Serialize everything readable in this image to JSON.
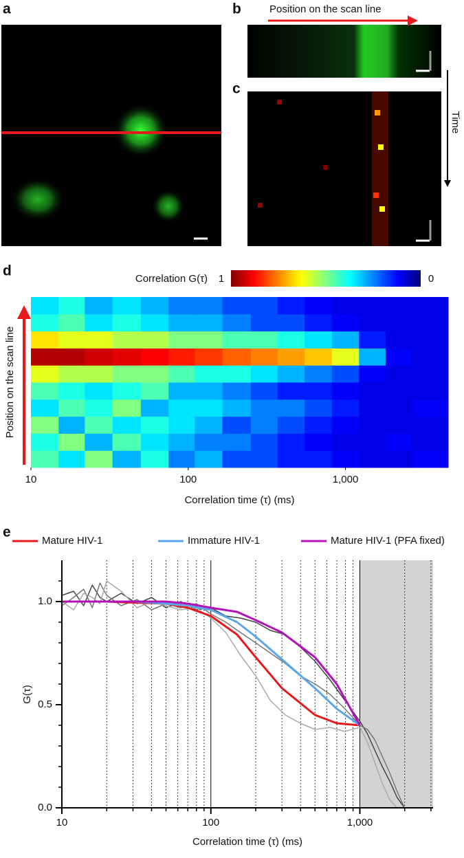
{
  "figure": {
    "panel_labels": [
      "a",
      "b",
      "c",
      "d",
      "e"
    ],
    "scan_line_label": "Position on the scan line",
    "time_label": "Time"
  },
  "chart_data": [
    {
      "type": "heatmap",
      "title": "Correlation G(τ)",
      "y_label": "Position on the scan line",
      "x_label": "Correlation time (τ) (ms)",
      "log_x": true,
      "xlim": [
        10,
        4500
      ],
      "xticks": [
        10,
        100,
        {
          "value": 1000,
          "label": "1,000"
        }
      ],
      "colormap": "jet-reversed",
      "clim": [
        0,
        1
      ],
      "xbins": [
        10,
        15,
        22,
        33,
        50,
        75,
        110,
        165,
        250,
        370,
        550,
        820,
        1220,
        1800,
        2700,
        4500
      ],
      "z": [
        [
          0.45,
          0.35,
          0.5,
          0.3,
          0.4,
          0.25,
          0.3,
          0.2,
          0.2,
          0.15,
          0.15,
          0.12,
          0.1,
          0.1,
          0.12
        ],
        [
          0.4,
          0.5,
          0.3,
          0.45,
          0.35,
          0.3,
          0.25,
          0.25,
          0.2,
          0.15,
          0.12,
          0.1,
          0.1,
          0.12,
          0.1
        ],
        [
          0.5,
          0.3,
          0.45,
          0.35,
          0.4,
          0.35,
          0.3,
          0.2,
          0.25,
          0.2,
          0.15,
          0.12,
          0.1,
          0.1,
          0.1
        ],
        [
          0.35,
          0.45,
          0.4,
          0.5,
          0.3,
          0.35,
          0.35,
          0.3,
          0.25,
          0.25,
          0.2,
          0.15,
          0.1,
          0.1,
          0.12
        ],
        [
          0.45,
          0.4,
          0.35,
          0.4,
          0.45,
          0.3,
          0.3,
          0.25,
          0.2,
          0.15,
          0.15,
          0.12,
          0.1,
          0.1,
          0.1
        ],
        [
          0.6,
          0.55,
          0.55,
          0.5,
          0.5,
          0.45,
          0.4,
          0.4,
          0.35,
          0.3,
          0.25,
          0.2,
          0.12,
          0.1,
          0.1
        ],
        [
          0.95,
          0.95,
          0.92,
          0.9,
          0.88,
          0.85,
          0.82,
          0.78,
          0.75,
          0.72,
          0.68,
          0.6,
          0.3,
          0.12,
          0.1
        ],
        [
          0.65,
          0.6,
          0.6,
          0.55,
          0.55,
          0.5,
          0.5,
          0.45,
          0.45,
          0.4,
          0.35,
          0.3,
          0.15,
          0.1,
          0.1
        ],
        [
          0.4,
          0.45,
          0.35,
          0.4,
          0.35,
          0.3,
          0.3,
          0.25,
          0.2,
          0.2,
          0.15,
          0.12,
          0.1,
          0.1,
          0.1
        ],
        [
          0.35,
          0.4,
          0.3,
          0.35,
          0.3,
          0.25,
          0.25,
          0.2,
          0.2,
          0.15,
          0.12,
          0.1,
          0.1,
          0.1,
          0.1
        ]
      ]
    },
    {
      "type": "line",
      "y_label": "G(τ)",
      "x_label": "Correlation time (τ) (ms)",
      "log_x": true,
      "xlim": [
        10,
        3100
      ],
      "ylim": [
        0,
        1.2
      ],
      "xticks": [
        10,
        100,
        {
          "value": 1000,
          "label": "1,000"
        }
      ],
      "yticks": [
        {
          "value": 0,
          "label": "0.0"
        },
        {
          "value": 0.5,
          "label": "0.5"
        },
        {
          "value": 1,
          "label": "1.0"
        }
      ],
      "yminor": [
        0.1,
        0.2,
        0.3,
        0.4,
        0.6,
        0.7,
        0.8,
        0.9,
        1.1
      ],
      "solid_vlines": [
        100,
        1000
      ],
      "dotted_vlines": [
        20,
        30,
        40,
        50,
        60,
        70,
        80,
        90,
        200,
        300,
        400,
        500,
        600,
        700,
        800,
        900,
        2000,
        3000
      ],
      "shaded_xrange": [
        1000,
        3100
      ],
      "series": [
        {
          "color": "#444",
          "x": [
            10,
            12,
            14,
            16,
            18,
            20,
            25,
            32,
            40,
            50,
            63,
            80,
            100,
            126,
            158,
            200,
            251,
            316,
            398,
            501,
            631,
            794,
            1000,
            1122,
            1259,
            1413,
            1585,
            1778,
            1995
          ],
          "values": [
            1.03,
            1.05,
            0.98,
            1.08,
            1.02,
            1.0,
            1.04,
            0.99,
            1.02,
            0.97,
            1.0,
            0.96,
            0.97,
            0.93,
            0.92,
            0.9,
            0.86,
            0.84,
            0.78,
            0.71,
            0.62,
            0.52,
            0.42,
            0.36,
            0.28,
            0.2,
            0.13,
            0.05,
            0.0
          ]
        },
        {
          "color": "#777",
          "x": [
            10,
            12,
            14,
            16,
            18,
            20,
            25,
            32,
            40,
            50,
            63,
            80,
            100,
            126,
            158,
            200,
            251,
            316,
            398,
            501,
            631,
            794,
            1000,
            1122,
            1259,
            1413,
            1585,
            1778,
            1995
          ],
          "values": [
            0.98,
            1.02,
            1.06,
            0.97,
            1.09,
            1.03,
            0.98,
            1.01,
            0.96,
            0.99,
            0.97,
            0.99,
            0.94,
            0.9,
            0.85,
            0.8,
            0.75,
            0.7,
            0.64,
            0.6,
            0.55,
            0.48,
            0.4,
            0.38,
            0.33,
            0.25,
            0.17,
            0.08,
            0.0
          ]
        },
        {
          "color": "#aaa",
          "x": [
            10,
            12,
            14,
            16,
            18,
            20,
            25,
            32,
            40,
            50,
            63,
            80,
            100,
            126,
            158,
            200,
            251,
            316,
            398,
            501,
            631,
            794,
            1000,
            1122,
            1259,
            1413,
            1585,
            1778,
            1995
          ],
          "values": [
            1.0,
            0.96,
            1.04,
            1.02,
            0.99,
            1.1,
            1.05,
            0.97,
            1.0,
            0.98,
            0.96,
            0.97,
            0.92,
            0.85,
            0.74,
            0.64,
            0.52,
            0.45,
            0.41,
            0.38,
            0.39,
            0.37,
            0.39,
            0.32,
            0.22,
            0.12,
            0.04,
            0.0,
            null
          ]
        },
        {
          "name": "Mature HIV-1",
          "color": "#e8191b",
          "x": [
            10,
            20,
            30,
            50,
            70,
            100,
            150,
            200,
            300,
            500,
            700,
            1000
          ],
          "values": [
            1.0,
            1.0,
            0.995,
            0.99,
            0.97,
            0.93,
            0.84,
            0.73,
            0.58,
            0.45,
            0.41,
            0.4
          ]
        },
        {
          "name": "Immature HIV-1",
          "color": "#5aa7ea",
          "x": [
            10,
            20,
            30,
            50,
            70,
            100,
            150,
            200,
            300,
            500,
            700,
            1000
          ],
          "values": [
            1.0,
            1.0,
            1.0,
            0.99,
            0.98,
            0.96,
            0.9,
            0.83,
            0.72,
            0.58,
            0.48,
            0.4
          ]
        },
        {
          "name": "Mature HIV-1 (PFA fixed)",
          "color": "#b312b8",
          "x": [
            10,
            20,
            30,
            50,
            70,
            100,
            150,
            200,
            300,
            500,
            700,
            1000
          ],
          "values": [
            1.0,
            1.0,
            1.0,
            1.0,
            0.99,
            0.97,
            0.95,
            0.91,
            0.85,
            0.73,
            0.6,
            0.4
          ]
        }
      ]
    }
  ]
}
